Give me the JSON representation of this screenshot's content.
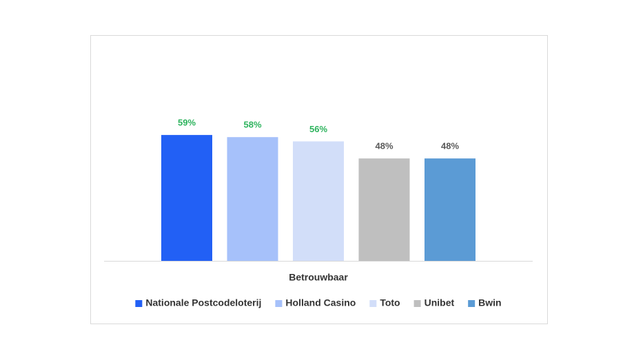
{
  "chart_data": {
    "type": "bar",
    "categories": [
      "Betrouwbaar"
    ],
    "series": [
      {
        "name": "Nationale Postcodeloterij",
        "color": "#2260f5",
        "values": [
          59
        ],
        "value_labels": [
          "59%"
        ],
        "label_color": "#2db35d"
      },
      {
        "name": "Holland Casino",
        "color": "#a6c1fa",
        "values": [
          58
        ],
        "value_labels": [
          "58%"
        ],
        "label_color": "#2db35d"
      },
      {
        "name": "Toto",
        "color": "#d2def9",
        "values": [
          56
        ],
        "value_labels": [
          "56%"
        ],
        "label_color": "#2db35d"
      },
      {
        "name": "Unibet",
        "color": "#bfbfbf",
        "values": [
          48
        ],
        "value_labels": [
          "48%"
        ],
        "label_color": "#595959"
      },
      {
        "name": "Bwin",
        "color": "#5b9bd5",
        "values": [
          48
        ],
        "value_labels": [
          "48%"
        ],
        "label_color": "#595959"
      }
    ],
    "legend": "bottom"
  }
}
